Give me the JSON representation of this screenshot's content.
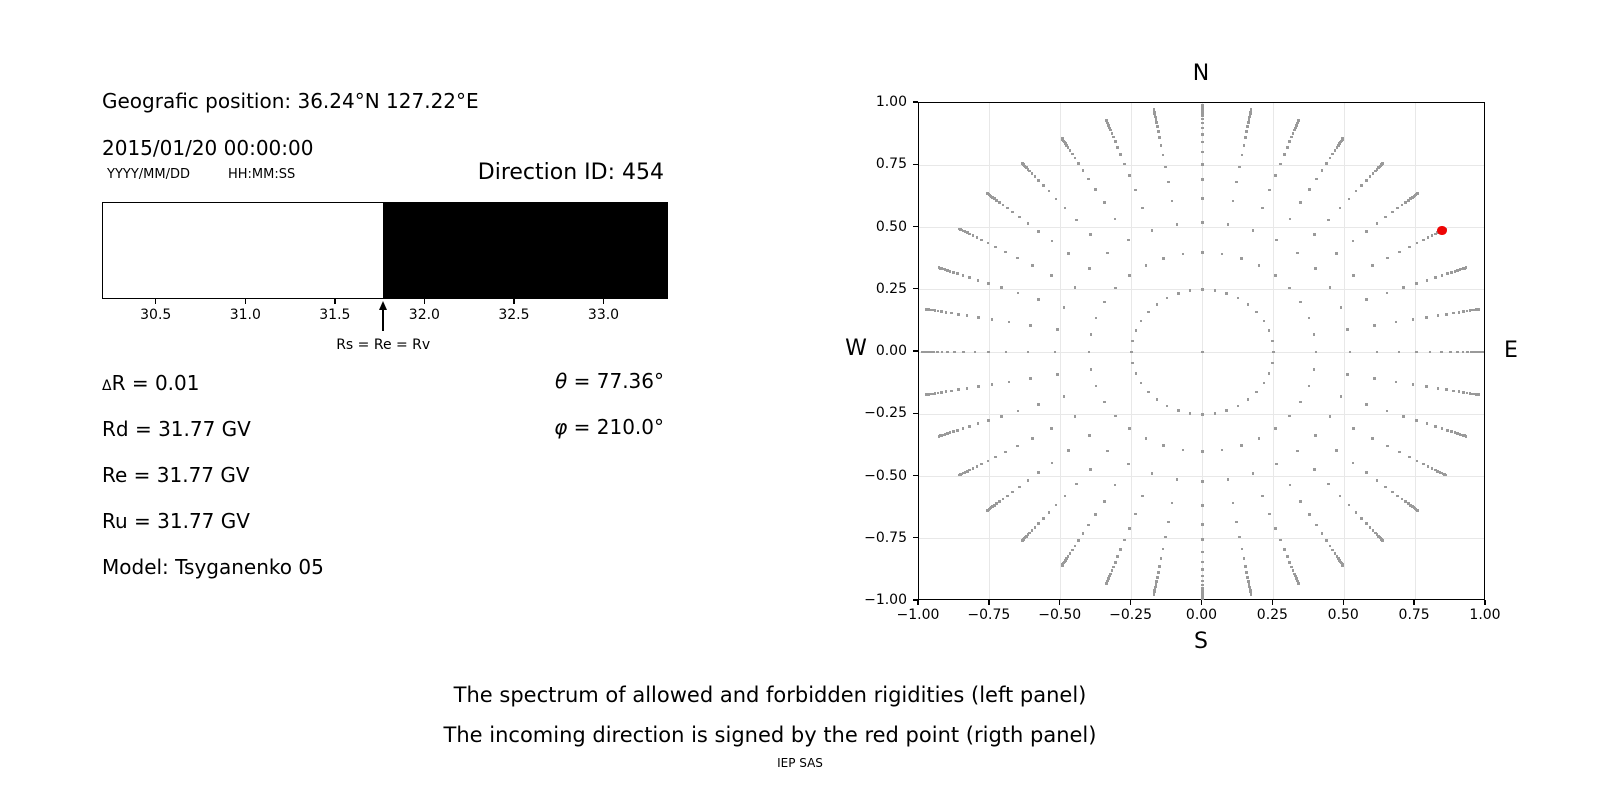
{
  "header": {
    "geo_position": "Geografic position: 36.24°N 127.22°E",
    "datetime": "2015/01/20 00:00:00",
    "date_format": "YYYY/MM/DD",
    "time_format": "HH:MM:SS",
    "direction_id": "Direction ID: 454"
  },
  "parameters": {
    "delta_symbol": "Δ",
    "delta_rest": "R = 0.01",
    "rd": "Rd = 31.77 GV",
    "re": "Re = 31.77 GV",
    "ru": "Ru = 31.77 GV",
    "model": "Model: Tsyganenko 05",
    "theta_symbol": "θ",
    "theta_rest": " = 77.36°",
    "phi_symbol": "φ",
    "phi_rest": " = 210.0°"
  },
  "captions": {
    "line1": "The spectrum of allowed and forbidden rigidities (left panel)",
    "line2": "The incoming direction is signed by the red point (rigth panel)",
    "credit": "IEP SAS"
  },
  "chart_data": [
    {
      "id": "rigidity-spectrum",
      "type": "area",
      "description": "Allowed (white) vs forbidden (black) rigidity spectrum; black region starts at the effective cutoff",
      "xlim": [
        30.2,
        33.36
      ],
      "xticks": [
        30.5,
        31.0,
        31.5,
        32.0,
        32.5,
        33.0
      ],
      "xtick_labels": [
        "30.5",
        "31.0",
        "31.5",
        "32.0",
        "32.5",
        "33.0"
      ],
      "regions": [
        {
          "name": "allowed",
          "from": 30.2,
          "to": 31.77,
          "color": "#ffffff"
        },
        {
          "name": "forbidden",
          "from": 31.77,
          "to": 33.36,
          "color": "#000000"
        }
      ],
      "arrow_x": 31.77,
      "arrow_label": "Rs = Re = Rv",
      "values": {
        "delta_R": 0.01,
        "Rd_GV": 31.77,
        "Re_GV": 31.77,
        "Ru_GV": 31.77,
        "theta_deg": 77.36,
        "phi_deg": 210.0,
        "model": "Tsyganenko 05",
        "direction_id": 454
      }
    },
    {
      "id": "direction-map",
      "type": "scatter",
      "description": "Grid of incoming directions (gray dots, 36 azimuth rays every 10°); red point marks the incoming direction",
      "xlim": [
        -1,
        1
      ],
      "ylim": [
        -1,
        1
      ],
      "xticks": [
        -1.0,
        -0.75,
        -0.5,
        -0.25,
        0.0,
        0.25,
        0.5,
        0.75,
        1.0
      ],
      "yticks": [
        1.0,
        0.75,
        0.5,
        0.25,
        0.0,
        -0.25,
        -0.5,
        -0.75,
        -1.0
      ],
      "xtick_labels": [
        "−1.00",
        "−0.75",
        "−0.50",
        "−0.25",
        "0.00",
        "0.25",
        "0.50",
        "0.75",
        "1.00"
      ],
      "ytick_labels": [
        "1.00",
        "0.75",
        "0.50",
        "0.25",
        "0.00",
        "−0.25",
        "−0.50",
        "−0.75",
        "−1.00"
      ],
      "grid": true,
      "grid_color": "#e8e8e8",
      "dot_color": "#9a9a9a",
      "red_color": "#ee0505",
      "compass": {
        "top": "N",
        "bottom": "S",
        "left": "W",
        "right": "E"
      },
      "azimuths_deg": [
        0,
        10,
        20,
        30,
        40,
        50,
        60,
        70,
        80,
        90,
        100,
        110,
        120,
        130,
        140,
        150,
        160,
        170,
        180,
        190,
        200,
        210,
        220,
        230,
        240,
        250,
        260,
        270,
        280,
        290,
        300,
        310,
        320,
        330,
        340,
        350
      ],
      "ray_radii": [
        0.25,
        0.4,
        0.52,
        0.616,
        0.693,
        0.754,
        0.803,
        0.843,
        0.874,
        0.899,
        0.919,
        0.935,
        0.948,
        0.958,
        0.967,
        0.973,
        0.979,
        0.983,
        0.986,
        0.989
      ],
      "center_dot": true,
      "red_point": {
        "x": 0.845,
        "y": 0.488
      }
    }
  ]
}
